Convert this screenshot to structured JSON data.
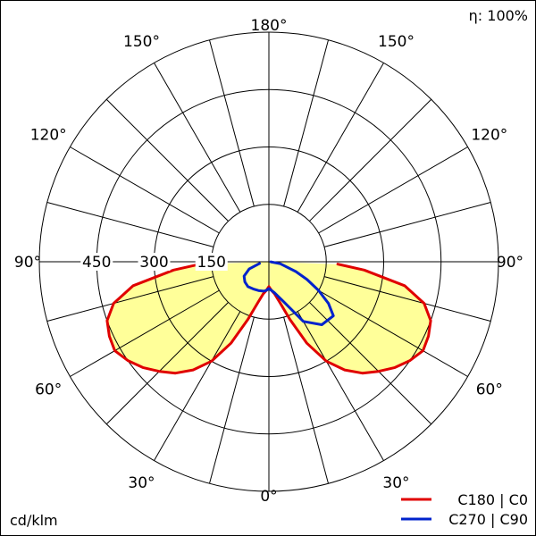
{
  "chart_data": {
    "type": "polar",
    "efficiency_label": "η: 100%",
    "unit_label": "cd/klm",
    "radial_max": 600,
    "radial_ticks": [
      {
        "value": 150,
        "label": "150"
      },
      {
        "value": 300,
        "label": "300"
      },
      {
        "value": 450,
        "label": "450"
      }
    ],
    "angle_labels": [
      {
        "angle": 180,
        "side": "top",
        "label": "180°"
      },
      {
        "angle": 150,
        "side": "left",
        "label": "150°"
      },
      {
        "angle": 150,
        "side": "right",
        "label": "150°"
      },
      {
        "angle": 120,
        "side": "left",
        "label": "120°"
      },
      {
        "angle": 120,
        "side": "right",
        "label": "120°"
      },
      {
        "angle": 90,
        "side": "left",
        "label": "90°"
      },
      {
        "angle": 90,
        "side": "right",
        "label": "90°"
      },
      {
        "angle": 60,
        "side": "left",
        "label": "60°"
      },
      {
        "angle": 60,
        "side": "right",
        "label": "60°"
      },
      {
        "angle": 30,
        "side": "left",
        "label": "30°"
      },
      {
        "angle": 30,
        "side": "right",
        "label": "30°"
      },
      {
        "angle": 0,
        "side": "bottom",
        "label": "0°"
      }
    ],
    "series": [
      {
        "name": "C180 | C0",
        "color": "#e00000",
        "fill": "#ffff99",
        "left_points": [
          [
            0,
            65
          ],
          [
            5,
            75
          ],
          [
            10,
            85
          ],
          [
            15,
            110
          ],
          [
            20,
            160
          ],
          [
            25,
            235
          ],
          [
            30,
            300
          ],
          [
            35,
            345
          ],
          [
            40,
            380
          ],
          [
            45,
            405
          ],
          [
            50,
            430
          ],
          [
            55,
            450
          ],
          [
            60,
            465
          ],
          [
            65,
            460
          ],
          [
            70,
            450
          ],
          [
            75,
            420
          ],
          [
            80,
            360
          ],
          [
            85,
            250
          ],
          [
            88,
            180
          ]
        ],
        "right_points": [
          [
            0,
            65
          ],
          [
            5,
            75
          ],
          [
            10,
            85
          ],
          [
            15,
            110
          ],
          [
            20,
            160
          ],
          [
            25,
            235
          ],
          [
            30,
            300
          ],
          [
            35,
            345
          ],
          [
            40,
            380
          ],
          [
            45,
            405
          ],
          [
            50,
            430
          ],
          [
            55,
            450
          ],
          [
            60,
            465
          ],
          [
            65,
            460
          ],
          [
            70,
            450
          ],
          [
            75,
            420
          ],
          [
            80,
            360
          ],
          [
            85,
            250
          ],
          [
            88,
            180
          ]
        ]
      },
      {
        "name": "C270 | C90",
        "color": "#0022cc",
        "left_points": [
          [
            0,
            70
          ],
          [
            5,
            75
          ],
          [
            10,
            78
          ],
          [
            20,
            80
          ],
          [
            30,
            82
          ],
          [
            40,
            85
          ],
          [
            50,
            82
          ],
          [
            60,
            75
          ],
          [
            70,
            55
          ],
          [
            80,
            25
          ]
        ],
        "right_points": [
          [
            0,
            70
          ],
          [
            5,
            75
          ],
          [
            10,
            82
          ],
          [
            20,
            110
          ],
          [
            30,
            180
          ],
          [
            40,
            215
          ],
          [
            50,
            220
          ],
          [
            55,
            190
          ],
          [
            60,
            150
          ],
          [
            65,
            110
          ],
          [
            70,
            75
          ],
          [
            80,
            30
          ],
          [
            88,
            5
          ]
        ]
      }
    ]
  }
}
